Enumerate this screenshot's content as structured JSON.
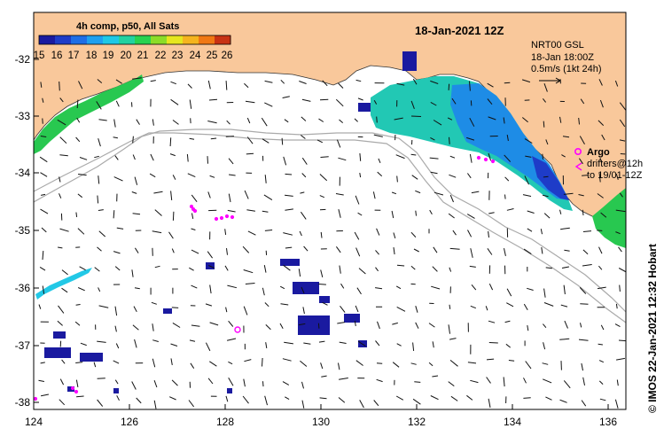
{
  "colorbar": {
    "title": "4h comp, p50, All Sats",
    "ticks": [
      "15",
      "16",
      "17",
      "18",
      "19",
      "20",
      "21",
      "22",
      "23",
      "24",
      "25",
      "26"
    ],
    "colors": [
      "#1a1aa0",
      "#1e3cc8",
      "#1e6ee6",
      "#1ea0f0",
      "#1ec8e6",
      "#22d2a0",
      "#28d250",
      "#8cdc28",
      "#e6e61e",
      "#f5b41e",
      "#f07814",
      "#c83214"
    ]
  },
  "map": {
    "date_label": "18-Jan-2021 12Z",
    "credit": "© IMOS 22-Jan-2021 12:32 Hobart",
    "lat_labels": [
      "-32",
      "-33",
      "-34",
      "-35",
      "-36",
      "-37",
      "-38"
    ],
    "lon_labels": [
      "124",
      "126",
      "128",
      "130",
      "132",
      "134",
      "136"
    ],
    "land_color": "#f9c89b",
    "argo_color": "#ff00ff"
  },
  "legend": {
    "gsl_line1": "NRT00 GSL",
    "gsl_line2": "18-Jan 18:00Z",
    "gsl_line3": "0.5m/s (1kt 24h)",
    "argo_label": "Argo",
    "drifters_line1": "drifters@12h",
    "drifters_line2": "to 19/01-12Z"
  }
}
